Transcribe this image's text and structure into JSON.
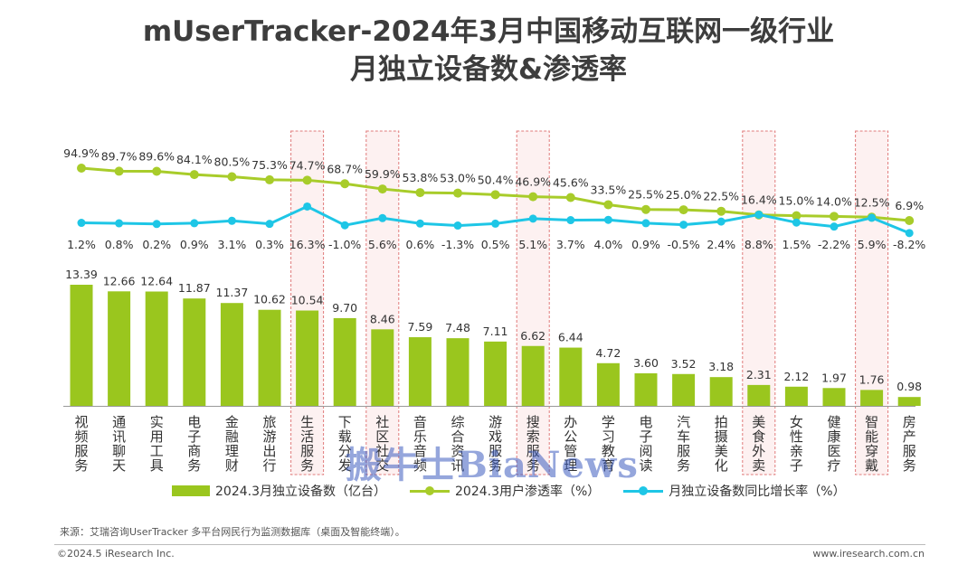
{
  "title_line1": "mUserTracker-2024年3月中国移动互联网一级行业",
  "title_line2": "月独立设备数&渗透率",
  "chart_data": {
    "type": "bar",
    "categories": [
      "视频服务",
      "通讯聊天",
      "实用工具",
      "电子商务",
      "金融理财",
      "旅游出行",
      "生活服务",
      "下载分发",
      "社区社交",
      "音乐音频",
      "综合资讯",
      "游戏服务",
      "搜索服务",
      "办公管理",
      "学习教育",
      "电子阅读",
      "汽车服务",
      "拍摄美化",
      "美食外卖",
      "女性亲子",
      "健康医疗",
      "智能穿戴",
      "房产服务"
    ],
    "highlighted": [
      "生活服务",
      "社区社交",
      "搜索服务",
      "美食外卖",
      "智能穿戴"
    ],
    "series": [
      {
        "name": "2024.3月独立设备数（亿台）",
        "type": "bar",
        "color": "#9ac61e",
        "values": [
          13.39,
          12.66,
          12.64,
          11.87,
          11.37,
          10.62,
          10.54,
          9.7,
          8.46,
          7.59,
          7.48,
          7.11,
          6.62,
          6.44,
          4.72,
          3.6,
          3.52,
          3.18,
          2.31,
          2.12,
          1.97,
          1.76,
          0.98
        ],
        "labels": [
          "13.39",
          "12.66",
          "12.64",
          "11.87",
          "11.37",
          "10.62",
          "10.54",
          "9.70",
          "8.46",
          "7.59",
          "7.48",
          "7.11",
          "6.62",
          "6.44",
          "4.72",
          "3.60",
          "3.52",
          "3.18",
          "2.31",
          "2.12",
          "1.97",
          "1.76",
          "0.98"
        ]
      },
      {
        "name": "2024.3用户渗透率（%）",
        "type": "line",
        "color": "#a8cc2a",
        "values": [
          94.9,
          89.7,
          89.6,
          84.1,
          80.5,
          75.3,
          74.7,
          68.7,
          59.9,
          53.8,
          53.0,
          50.4,
          46.9,
          45.6,
          33.5,
          25.5,
          25.0,
          22.5,
          16.4,
          15.0,
          14.0,
          12.5,
          6.9
        ],
        "labels": [
          "94.9%",
          "89.7%",
          "89.6%",
          "84.1%",
          "80.5%",
          "75.3%",
          "74.7%",
          "68.7%",
          "59.9%",
          "53.8%",
          "53.0%",
          "50.4%",
          "46.9%",
          "45.6%",
          "33.5%",
          "25.5%",
          "25.0%",
          "22.5%",
          "16.4%",
          "15.0%",
          "14.0%",
          "12.5%",
          "6.9%"
        ]
      },
      {
        "name": "月独立设备数同比增长率（%）",
        "type": "line",
        "color": "#1ec6e6",
        "values": [
          1.2,
          0.8,
          0.2,
          0.9,
          3.1,
          0.3,
          16.3,
          -1.0,
          5.6,
          0.6,
          -1.3,
          0.5,
          5.1,
          3.7,
          4.0,
          0.9,
          -0.5,
          2.4,
          8.8,
          1.5,
          -2.2,
          5.9,
          -8.2
        ],
        "labels": [
          "1.2%",
          "0.8%",
          "0.2%",
          "0.9%",
          "3.1%",
          "0.3%",
          "16.3%",
          "-1.0%",
          "5.6%",
          "0.6%",
          "-1.3%",
          "0.5%",
          "5.1%",
          "3.7%",
          "4.0%",
          "0.9%",
          "-0.5%",
          "2.4%",
          "8.8%",
          "1.5%",
          "-2.2%",
          "5.9%",
          "-8.2%"
        ]
      }
    ]
  },
  "legend": {
    "bar": "2024.3月独立设备数（亿台）",
    "penetration": "2024.3用户渗透率（%）",
    "growth": "月独立设备数同比增长率（%）"
  },
  "source": "来源：艾瑞咨询UserTracker 多平台网民行为监测数据库（桌面及智能终端）。",
  "copyright": "©2024.5 iResearch Inc.",
  "website": "www.iresearch.com.cn",
  "watermark": "搬牛士BiaNews",
  "colors": {
    "bar": "#9ac61e",
    "penetration_line": "#a8cc2a",
    "growth_line": "#1ec6e6",
    "highlight_border": "#e07b7b",
    "highlight_fill": "#fdf1f1"
  }
}
